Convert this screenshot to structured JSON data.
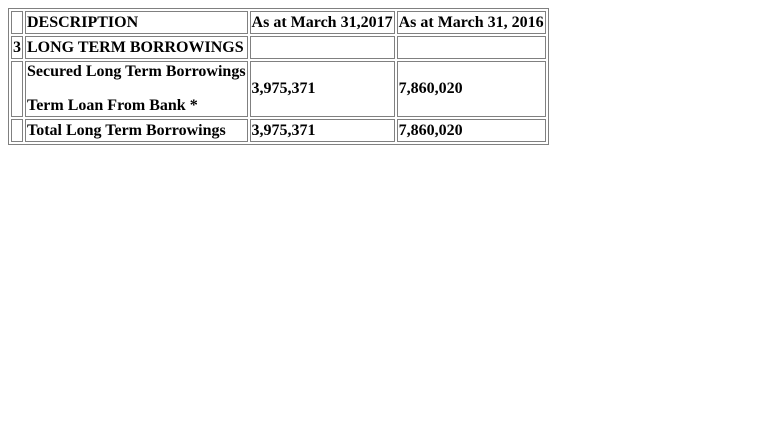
{
  "table": {
    "header": {
      "no": "",
      "description": "DESCRIPTION",
      "col_2017": "As at March 31,2017",
      "col_2016": "As at March 31, 2016"
    },
    "rows": [
      {
        "no": "3",
        "description": "LONG TERM BORROWINGS",
        "val_2017": "",
        "val_2016": ""
      },
      {
        "no": "",
        "description_line1": "Secured Long Term Borrowings",
        "description_line2": "Term Loan From Bank *",
        "val_2017": "3,975,371",
        "val_2016": "7,860,020"
      },
      {
        "no": "",
        "description": "Total Long Term Borrowings",
        "val_2017": "3,975,371",
        "val_2016": "7,860,020"
      }
    ]
  }
}
